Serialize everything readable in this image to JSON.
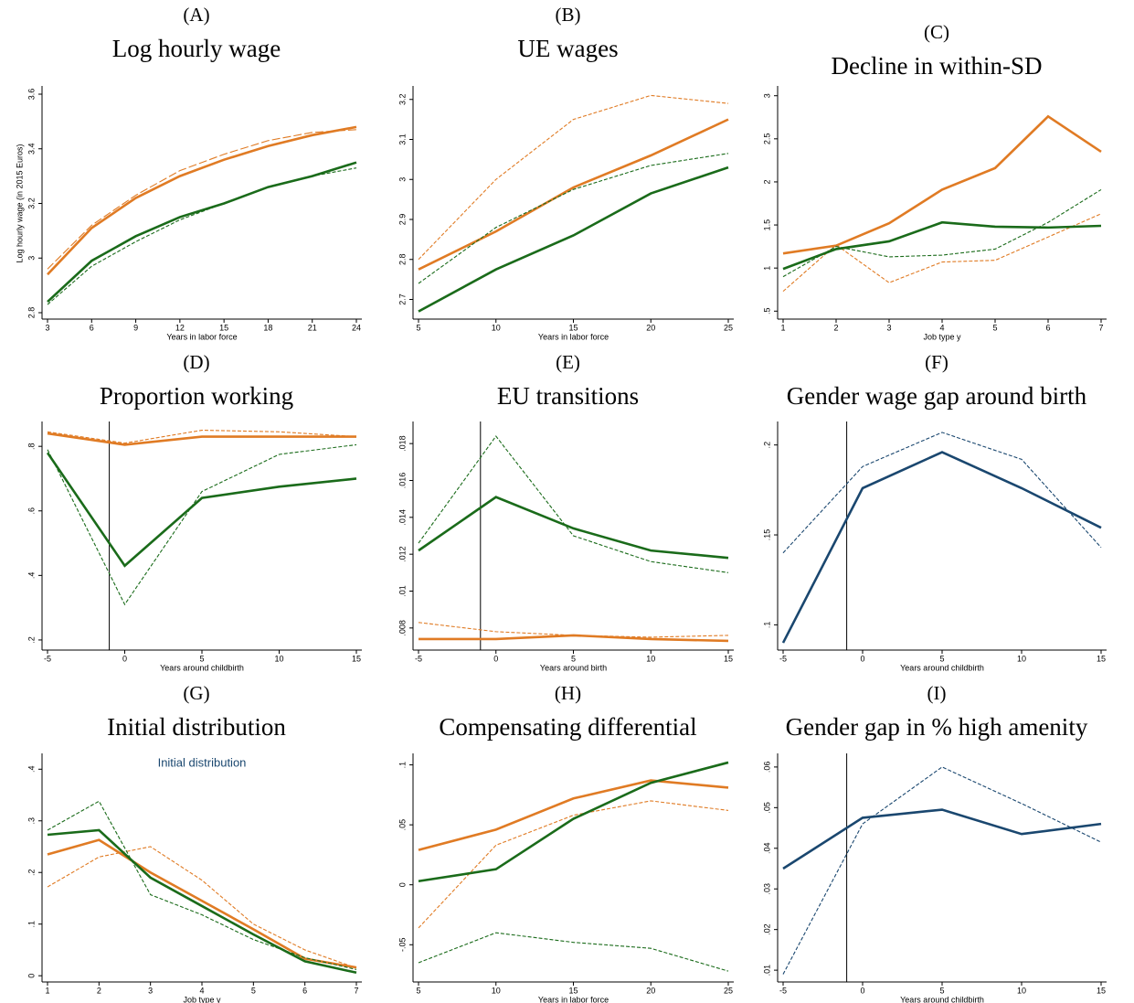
{
  "chart_data": [
    {
      "type": "line",
      "label": "(A)",
      "title": "Log hourly wage",
      "xlabel": "Years in labor force",
      "ylabel": "Log hourly wage (in 2015 Euros)",
      "x": [
        3,
        6,
        9,
        12,
        15,
        18,
        21,
        24
      ],
      "xlim": [
        3,
        24
      ],
      "xticks": [
        3,
        6,
        9,
        12,
        15,
        18,
        21,
        24
      ],
      "ylim": [
        2.79,
        3.61
      ],
      "yticks": [
        2.8,
        3,
        3.2,
        3.4,
        3.6
      ],
      "series": [
        {
          "color": "#e07b24",
          "line_style": "longdash",
          "values": [
            2.96,
            3.12,
            3.23,
            3.32,
            3.38,
            3.43,
            3.46,
            3.47
          ]
        },
        {
          "color": "#e07b24",
          "line_style": "solid",
          "values": [
            2.94,
            3.11,
            3.22,
            3.3,
            3.36,
            3.41,
            3.45,
            3.48
          ]
        },
        {
          "color": "#1a6b1a",
          "line_style": "dash",
          "values": [
            2.83,
            2.97,
            3.06,
            3.14,
            3.2,
            3.26,
            3.3,
            3.33
          ]
        },
        {
          "color": "#1a6b1a",
          "line_style": "solid",
          "values": [
            2.84,
            2.99,
            3.08,
            3.15,
            3.2,
            3.26,
            3.3,
            3.35
          ]
        }
      ]
    },
    {
      "type": "line",
      "label": "(B)",
      "title": "UE wages",
      "xlabel": "Years in labor force",
      "x": [
        5,
        10,
        15,
        20,
        25
      ],
      "xlim": [
        5,
        25
      ],
      "xticks": [
        5,
        10,
        15,
        20,
        25
      ],
      "ylim": [
        2.66,
        3.22
      ],
      "yticks": [
        2.7,
        2.8,
        2.9,
        3,
        3.1,
        3.2
      ],
      "series": [
        {
          "color": "#e07b24",
          "line_style": "dash",
          "values": [
            2.8,
            3.0,
            3.15,
            3.21,
            3.19
          ]
        },
        {
          "color": "#e07b24",
          "line_style": "solid",
          "values": [
            2.775,
            2.87,
            2.98,
            3.06,
            3.15
          ]
        },
        {
          "color": "#1a6b1a",
          "line_style": "dash",
          "values": [
            2.74,
            2.88,
            2.975,
            3.035,
            3.065
          ]
        },
        {
          "color": "#1a6b1a",
          "line_style": "solid",
          "values": [
            2.67,
            2.775,
            2.86,
            2.965,
            3.03
          ]
        }
      ]
    },
    {
      "type": "line",
      "label": "(C)",
      "title": "Decline in within-SD",
      "xlabel": "Job type y",
      "x": [
        1,
        2,
        3,
        4,
        5,
        6,
        7
      ],
      "xlim": [
        1,
        7
      ],
      "xticks": [
        1,
        2,
        3,
        4,
        5,
        6,
        7
      ],
      "ylim": [
        0.45,
        3.05
      ],
      "yticks": [
        {
          "value": 0.5,
          "label": ".5"
        },
        1,
        1.5,
        2,
        2.5,
        3
      ],
      "series": [
        {
          "color": "#e07b24",
          "line_style": "dash",
          "values": [
            0.73,
            1.27,
            0.83,
            1.07,
            1.09,
            1.36,
            1.63
          ]
        },
        {
          "color": "#e07b24",
          "line_style": "solid",
          "values": [
            1.17,
            1.26,
            1.52,
            1.91,
            2.16,
            2.76,
            2.35
          ]
        },
        {
          "color": "#1a6b1a",
          "line_style": "dash",
          "values": [
            0.9,
            1.25,
            1.13,
            1.15,
            1.22,
            1.53,
            1.91
          ]
        },
        {
          "color": "#1a6b1a",
          "line_style": "solid",
          "values": [
            0.99,
            1.22,
            1.31,
            1.53,
            1.48,
            1.47,
            1.49
          ]
        }
      ]
    },
    {
      "type": "line",
      "label": "(D)",
      "title": "Proportion working",
      "xlabel": "Years around childbirth",
      "x": [
        -5,
        0,
        5,
        10,
        15
      ],
      "xlim": [
        -5,
        15
      ],
      "xticks": [
        -5,
        0,
        5,
        10,
        15
      ],
      "vline": -1,
      "ylim": [
        0.18,
        0.86
      ],
      "yticks": [
        {
          "value": 0.2,
          "label": ".2"
        },
        {
          "value": 0.4,
          "label": ".4"
        },
        {
          "value": 0.6,
          "label": ".6"
        },
        {
          "value": 0.8,
          "label": ".8"
        }
      ],
      "series": [
        {
          "color": "#e07b24",
          "line_style": "dash",
          "values": [
            0.845,
            0.81,
            0.85,
            0.845,
            0.83
          ]
        },
        {
          "color": "#e07b24",
          "line_style": "solid",
          "values": [
            0.84,
            0.805,
            0.83,
            0.83,
            0.83
          ]
        },
        {
          "color": "#1a6b1a",
          "line_style": "dash",
          "values": [
            0.79,
            0.31,
            0.66,
            0.775,
            0.805
          ]
        },
        {
          "color": "#1a6b1a",
          "line_style": "solid",
          "values": [
            0.78,
            0.43,
            0.64,
            0.675,
            0.7
          ]
        }
      ]
    },
    {
      "type": "line",
      "label": "(E)",
      "title": "EU transitions",
      "xlabel": "Years around birth",
      "x": [
        -5,
        0,
        5,
        10,
        15
      ],
      "xlim": [
        -5,
        15
      ],
      "xticks": [
        -5,
        0,
        5,
        10,
        15
      ],
      "vline": -1,
      "ylim": [
        0.007,
        0.0189
      ],
      "yticks": [
        {
          "value": 0.008,
          "label": ".008"
        },
        {
          "value": 0.01,
          "label": ".01"
        },
        {
          "value": 0.012,
          "label": ".012"
        },
        {
          "value": 0.014,
          "label": ".014"
        },
        {
          "value": 0.016,
          "label": ".016"
        },
        {
          "value": 0.018,
          "label": ".018"
        }
      ],
      "series": [
        {
          "color": "#e07b24",
          "line_style": "dash",
          "values": [
            0.0083,
            0.0078,
            0.0076,
            0.0075,
            0.0076
          ]
        },
        {
          "color": "#e07b24",
          "line_style": "solid",
          "values": [
            0.0074,
            0.0074,
            0.0076,
            0.0074,
            0.0073
          ]
        },
        {
          "color": "#1a6b1a",
          "line_style": "dash",
          "values": [
            0.0126,
            0.0184,
            0.013,
            0.0116,
            0.011
          ]
        },
        {
          "color": "#1a6b1a",
          "line_style": "solid",
          "values": [
            0.0122,
            0.0151,
            0.0134,
            0.0122,
            0.0118
          ]
        }
      ]
    },
    {
      "type": "line",
      "label": "(F)",
      "title": "Gender wage gap around birth",
      "xlabel": "Years around childbirth",
      "x": [
        -5,
        0,
        5,
        10,
        15
      ],
      "xlim": [
        -5,
        15
      ],
      "xticks": [
        -5,
        0,
        5,
        10,
        15
      ],
      "vline": -1,
      "ylim": [
        0.088,
        0.21
      ],
      "yticks": [
        {
          "value": 0.1,
          "label": ".1"
        },
        {
          "value": 0.15,
          "label": ".15"
        },
        {
          "value": 0.2,
          "label": ".2"
        }
      ],
      "series": [
        {
          "color": "#1a476f",
          "line_style": "dash",
          "values": [
            0.14,
            0.188,
            0.207,
            0.192,
            0.143
          ]
        },
        {
          "color": "#1a476f",
          "line_style": "solid",
          "values": [
            0.09,
            0.176,
            0.196,
            0.176,
            0.154
          ]
        }
      ]
    },
    {
      "type": "line",
      "label": "(G)",
      "title": "Initial distribution",
      "subtitle": "Initial distribution",
      "xlabel": "Job type y",
      "x": [
        1,
        2,
        3,
        4,
        5,
        6,
        7
      ],
      "xlim": [
        1,
        7
      ],
      "xticks": [
        1,
        2,
        3,
        4,
        5,
        6,
        7
      ],
      "ylim": [
        -0.005,
        0.42
      ],
      "yticks": [
        0,
        {
          "value": 0.1,
          "label": ".1"
        },
        {
          "value": 0.2,
          "label": ".2"
        },
        {
          "value": 0.3,
          "label": ".3"
        },
        {
          "value": 0.4,
          "label": ".4"
        }
      ],
      "series": [
        {
          "color": "#e07b24",
          "line_style": "dash",
          "values": [
            0.172,
            0.23,
            0.25,
            0.185,
            0.1,
            0.05,
            0.015
          ]
        },
        {
          "color": "#e07b24",
          "line_style": "solid",
          "values": [
            0.235,
            0.263,
            0.2,
            0.145,
            0.09,
            0.033,
            0.016
          ]
        },
        {
          "color": "#1a6b1a",
          "line_style": "dash",
          "values": [
            0.282,
            0.338,
            0.157,
            0.118,
            0.07,
            0.035,
            0.012
          ]
        },
        {
          "color": "#1a6b1a",
          "line_style": "solid",
          "values": [
            0.273,
            0.282,
            0.19,
            0.135,
            0.08,
            0.028,
            0.006
          ]
        }
      ]
    },
    {
      "type": "line",
      "label": "(H)",
      "title": "Compensating differential",
      "xlabel": "Years in labor force",
      "x": [
        5,
        10,
        15,
        20,
        25
      ],
      "xlim": [
        5,
        25
      ],
      "xticks": [
        5,
        10,
        15,
        20,
        25
      ],
      "ylim": [
        -0.078,
        0.105
      ],
      "yticks": [
        {
          "value": -0.05,
          "label": "-.05"
        },
        0,
        {
          "value": 0.05,
          "label": ".05"
        },
        {
          "value": 0.1,
          "label": ".1"
        }
      ],
      "series": [
        {
          "color": "#e07b24",
          "line_style": "dash",
          "values": [
            -0.036,
            0.033,
            0.058,
            0.07,
            0.062
          ]
        },
        {
          "color": "#e07b24",
          "line_style": "solid",
          "values": [
            0.029,
            0.046,
            0.072,
            0.087,
            0.081
          ]
        },
        {
          "color": "#1a6b1a",
          "line_style": "dash",
          "values": [
            -0.065,
            -0.04,
            -0.048,
            -0.053,
            -0.072
          ]
        },
        {
          "color": "#1a6b1a",
          "line_style": "solid",
          "values": [
            0.003,
            0.013,
            0.055,
            0.085,
            0.102
          ]
        }
      ]
    },
    {
      "type": "line",
      "label": "(I)",
      "title": "Gender gap in % high amenity",
      "xlabel": "Years around childbirth",
      "x": [
        -5,
        0,
        5,
        10,
        15
      ],
      "xlim": [
        -5,
        15
      ],
      "xticks": [
        -5,
        0,
        5,
        10,
        15
      ],
      "vline": -1,
      "ylim": [
        0.008,
        0.062
      ],
      "yticks": [
        {
          "value": 0.01,
          "label": ".01"
        },
        {
          "value": 0.02,
          "label": ".02"
        },
        {
          "value": 0.03,
          "label": ".03"
        },
        {
          "value": 0.04,
          "label": ".04"
        },
        {
          "value": 0.05,
          "label": ".05"
        },
        {
          "value": 0.06,
          "label": ".06"
        }
      ],
      "series": [
        {
          "color": "#1a476f",
          "line_style": "dash",
          "values": [
            0.009,
            0.046,
            0.06,
            0.051,
            0.0415
          ]
        },
        {
          "color": "#1a476f",
          "line_style": "solid",
          "values": [
            0.035,
            0.0475,
            0.0495,
            0.0435,
            0.046
          ]
        }
      ]
    }
  ]
}
